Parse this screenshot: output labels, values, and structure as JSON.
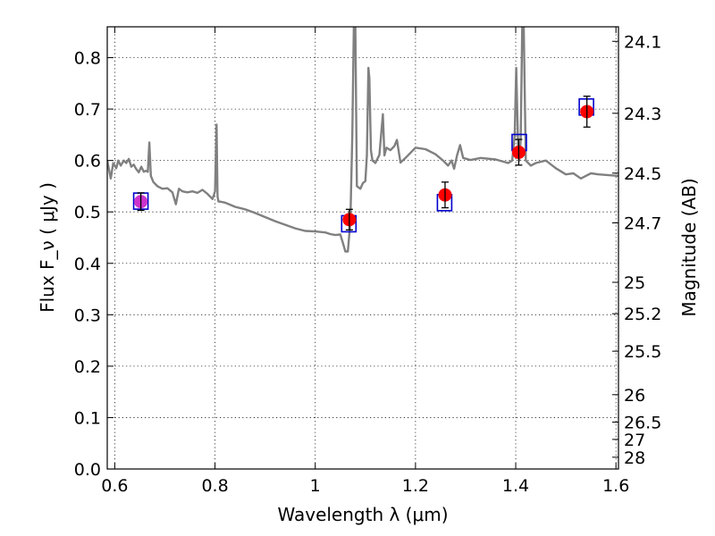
{
  "chart_data": {
    "type": "scatter",
    "xlabel": "Wavelength  λ (μm)",
    "ylabel": "Flux  F_ν  ( μJy )",
    "y2label": "Magnitude (AB)",
    "xlim": [
      0.585,
      1.605
    ],
    "ylim": [
      0.0,
      0.86
    ],
    "grid": true,
    "legend": "none",
    "x_ticks": [
      {
        "value": 0.6,
        "label": "0.6"
      },
      {
        "value": 0.8,
        "label": "0.8"
      },
      {
        "value": 1.0,
        "label": "1"
      },
      {
        "value": 1.2,
        "label": "1.2"
      },
      {
        "value": 1.4,
        "label": "1.4"
      },
      {
        "value": 1.6,
        "label": "1.6"
      }
    ],
    "y_ticks": [
      {
        "value": 0.0,
        "label": "0.0"
      },
      {
        "value": 0.1,
        "label": "0.1"
      },
      {
        "value": 0.2,
        "label": "0.2"
      },
      {
        "value": 0.3,
        "label": "0.3"
      },
      {
        "value": 0.4,
        "label": "0.4"
      },
      {
        "value": 0.5,
        "label": "0.5"
      },
      {
        "value": 0.6,
        "label": "0.6"
      },
      {
        "value": 0.7,
        "label": "0.7"
      },
      {
        "value": 0.8,
        "label": "0.8"
      }
    ],
    "y2_ticks": [
      {
        "value": 24.1,
        "label": "24.1"
      },
      {
        "value": 24.3,
        "label": "24.3"
      },
      {
        "value": 24.5,
        "label": "24.5"
      },
      {
        "value": 24.7,
        "label": "24.7"
      },
      {
        "value": 25.0,
        "label": "25"
      },
      {
        "value": 25.2,
        "label": "25.2"
      },
      {
        "value": 25.5,
        "label": "25.5"
      },
      {
        "value": 26.0,
        "label": "26"
      },
      {
        "value": 26.5,
        "label": "26.5"
      },
      {
        "value": 27.0,
        "label": "27"
      },
      {
        "value": 28.0,
        "label": "28"
      }
    ],
    "spectrum": {
      "color": "#808080",
      "x": [
        0.585,
        0.592,
        0.597,
        0.603,
        0.607,
        0.612,
        0.618,
        0.623,
        0.628,
        0.633,
        0.638,
        0.643,
        0.648,
        0.653,
        0.658,
        0.662,
        0.666,
        0.669,
        0.672,
        0.677,
        0.685,
        0.695,
        0.705,
        0.715,
        0.722,
        0.728,
        0.735,
        0.745,
        0.755,
        0.765,
        0.775,
        0.785,
        0.795,
        0.8,
        0.803,
        0.805,
        0.807,
        0.81,
        0.82,
        0.84,
        0.86,
        0.88,
        0.9,
        0.92,
        0.94,
        0.96,
        0.98,
        1.0,
        1.02,
        1.03,
        1.04,
        1.05,
        1.055,
        1.06,
        1.065,
        1.07,
        1.074,
        1.077,
        1.08,
        1.083,
        1.09,
        1.095,
        1.1,
        1.103,
        1.106,
        1.108,
        1.111,
        1.114,
        1.12,
        1.128,
        1.135,
        1.138,
        1.142,
        1.15,
        1.158,
        1.163,
        1.17,
        1.18,
        1.2,
        1.22,
        1.24,
        1.255,
        1.265,
        1.272,
        1.277,
        1.283,
        1.289,
        1.295,
        1.31,
        1.33,
        1.36,
        1.385,
        1.393,
        1.398,
        1.401,
        1.403,
        1.405,
        1.407,
        1.41,
        1.413,
        1.416,
        1.42,
        1.43,
        1.44,
        1.46,
        1.48,
        1.5,
        1.515,
        1.53,
        1.54,
        1.55,
        1.565,
        1.58,
        1.605
      ],
      "y": [
        0.6,
        0.565,
        0.595,
        0.585,
        0.6,
        0.59,
        0.6,
        0.595,
        0.603,
        0.588,
        0.592,
        0.583,
        0.577,
        0.588,
        0.578,
        0.58,
        0.578,
        0.635,
        0.57,
        0.558,
        0.55,
        0.545,
        0.546,
        0.538,
        0.515,
        0.545,
        0.54,
        0.538,
        0.54,
        0.537,
        0.543,
        0.535,
        0.525,
        0.54,
        0.67,
        0.53,
        0.52,
        0.52,
        0.518,
        0.51,
        0.505,
        0.498,
        0.49,
        0.482,
        0.475,
        0.468,
        0.463,
        0.462,
        0.46,
        0.457,
        0.455,
        0.456,
        0.44,
        0.423,
        0.423,
        0.48,
        0.65,
        0.86,
        0.86,
        0.55,
        0.545,
        0.556,
        0.56,
        0.61,
        0.78,
        0.76,
        0.62,
        0.6,
        0.595,
        0.611,
        0.69,
        0.61,
        0.625,
        0.62,
        0.628,
        0.64,
        0.596,
        0.605,
        0.625,
        0.622,
        0.612,
        0.6,
        0.59,
        0.6,
        0.584,
        0.61,
        0.63,
        0.605,
        0.601,
        0.605,
        0.602,
        0.595,
        0.6,
        0.65,
        0.78,
        0.7,
        0.62,
        0.6,
        0.64,
        0.86,
        0.86,
        0.6,
        0.59,
        0.595,
        0.6,
        0.585,
        0.573,
        0.575,
        0.565,
        0.57,
        0.575,
        0.573,
        0.572,
        0.57
      ]
    },
    "model_points": {
      "marker": "square",
      "color": "#0000cc",
      "x": [
        0.652,
        1.067,
        1.258,
        1.407,
        1.541
      ],
      "y": [
        0.521,
        0.477,
        0.518,
        0.635,
        0.704
      ]
    },
    "observed_points": {
      "marker": "circle",
      "color": "#ff0000",
      "x": [
        1.068,
        1.259,
        1.406,
        1.542
      ],
      "y": [
        0.485,
        0.533,
        0.616,
        0.695
      ],
      "yerr": [
        0.02,
        0.025,
        0.025,
        0.03
      ]
    },
    "special_point": {
      "marker": "circle",
      "color": "#cc33cc",
      "x": 0.652,
      "y": 0.52,
      "yerr": 0.017
    }
  }
}
